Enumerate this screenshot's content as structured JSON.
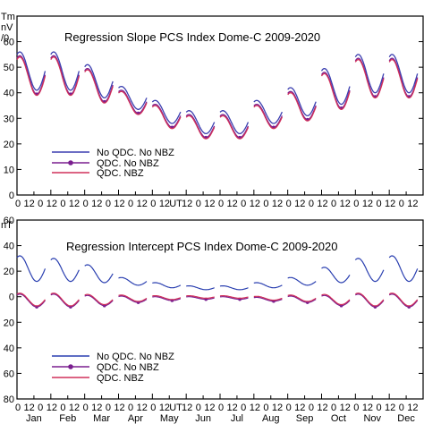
{
  "chart_data": [
    {
      "type": "line",
      "title": "Regression Slope   PCS Index  Dome-C     2009-2020",
      "unit_label_line1": "Tm",
      "unit_label_line2": "nV",
      "unit_label_line3": "/0",
      "ylim": [
        0,
        70
      ],
      "y_ticks": [
        {
          "value": 60,
          "label": "60"
        },
        {
          "value": 50,
          "label": "50"
        },
        {
          "value": 40,
          "label": "40"
        },
        {
          "value": 30,
          "label": "30"
        },
        {
          "value": 20,
          "label": "20"
        },
        {
          "value": 10,
          "label": "10"
        },
        {
          "value": 0,
          "label": "0"
        }
      ],
      "x_hour_ticks": [
        "0",
        "12",
        "0",
        "12",
        "0",
        "12",
        "0",
        "12",
        "0",
        "12",
        "0",
        "12",
        "0",
        "12",
        "UT",
        "12",
        "0",
        "12",
        "0",
        "12",
        "0",
        "12",
        "0",
        "12",
        "0",
        "12",
        "0",
        "12",
        "0",
        "12",
        "0",
        "12",
        "0",
        "12",
        "0",
        "12"
      ],
      "grid": false,
      "legend_position": "bottom-left",
      "legend": [
        {
          "label": "No QDC. No NBZ",
          "color": "#3b3fb0",
          "marker": false
        },
        {
          "label": "QDC. No NBZ",
          "color": "#7a1f8f",
          "marker": true
        },
        {
          "label": "QDC. NBZ",
          "color": "#d0305a",
          "marker": false
        }
      ],
      "months": [
        {
          "month": "Jan",
          "mean": 47,
          "amp": 7.5
        },
        {
          "month": "Feb",
          "mean": 47,
          "amp": 7.5
        },
        {
          "month": "Mar",
          "mean": 43,
          "amp": 6.5
        },
        {
          "month": "Apr",
          "mean": 36.5,
          "amp": 4.5
        },
        {
          "month": "May",
          "mean": 31,
          "amp": 4.5
        },
        {
          "month": "Jun",
          "mean": 27,
          "amp": 4.5
        },
        {
          "month": "Jul",
          "mean": 27,
          "amp": 4.5
        },
        {
          "month": "Aug",
          "mean": 31,
          "amp": 4.5
        },
        {
          "month": "Sep",
          "mean": 35,
          "amp": 5.5
        },
        {
          "month": "Oct",
          "mean": 41,
          "amp": 7
        },
        {
          "month": "Nov",
          "mean": 46,
          "amp": 7.5
        },
        {
          "month": "Dec",
          "mean": 46,
          "amp": 7.5
        }
      ],
      "series": [
        {
          "name": "No QDC. No NBZ",
          "offset": 1.5
        },
        {
          "name": "QDC. No NBZ",
          "offset": 0
        },
        {
          "name": "QDC. NBZ",
          "offset": -0.5
        }
      ]
    },
    {
      "type": "line",
      "title": "Regression Intercept  PCS Index  Dome-C  2009-2020",
      "unit_label_line1": "nT",
      "ylim": [
        -80,
        60
      ],
      "y_ticks": [
        {
          "value": 60,
          "label": "60"
        },
        {
          "value": 40,
          "label": "40"
        },
        {
          "value": 20,
          "label": "20"
        },
        {
          "value": 0,
          "label": "0"
        },
        {
          "value": -20,
          "label": "20"
        },
        {
          "value": -40,
          "label": "40"
        },
        {
          "value": -60,
          "label": "60"
        },
        {
          "value": -80,
          "label": "80"
        }
      ],
      "x_hour_ticks": [
        "0",
        "12",
        "0",
        "12",
        "0",
        "12",
        "0",
        "12",
        "0",
        "12",
        "0",
        "12",
        "0",
        "12",
        "UT",
        "12",
        "0",
        "12",
        "0",
        "12",
        "0",
        "12",
        "0",
        "12",
        "0",
        "12",
        "0",
        "12",
        "0",
        "12",
        "0",
        "12",
        "0",
        "12",
        "0",
        "12"
      ],
      "categories": [
        "Jan",
        "Feb",
        "Mar",
        "Apr",
        "May",
        "Jun",
        "Jul",
        "Aug",
        "Sep",
        "Oct",
        "Nov",
        "Dec"
      ],
      "grid": false,
      "legend_position": "bottom-left",
      "legend": [
        {
          "label": "No QDC. No NBZ",
          "color": "#2a3fb0",
          "marker": false
        },
        {
          "label": "QDC. No NBZ",
          "color": "#7a1f8f",
          "marker": true
        },
        {
          "label": "QDC. NBZ",
          "color": "#d0305a",
          "marker": false
        }
      ],
      "months": [
        {
          "month": "Jan",
          "upper_mean": 22,
          "upper_amp": 10,
          "lower_mean": -3,
          "lower_amp": 5
        },
        {
          "month": "Feb",
          "upper_mean": 21,
          "upper_amp": 9,
          "lower_mean": -3,
          "lower_amp": 5
        },
        {
          "month": "Mar",
          "upper_mean": 18,
          "upper_amp": 7,
          "lower_mean": -3,
          "lower_amp": 4
        },
        {
          "month": "Apr",
          "upper_mean": 12,
          "upper_amp": 3,
          "lower_mean": -2,
          "lower_amp": 2.5
        },
        {
          "month": "May",
          "upper_mean": 9,
          "upper_amp": 2,
          "lower_mean": -1.5,
          "lower_amp": 1.5
        },
        {
          "month": "Jun",
          "upper_mean": 7,
          "upper_amp": 1.5,
          "lower_mean": -1,
          "lower_amp": 1
        },
        {
          "month": "Jul",
          "upper_mean": 7,
          "upper_amp": 1.5,
          "lower_mean": -1,
          "lower_amp": 1
        },
        {
          "month": "Aug",
          "upper_mean": 9,
          "upper_amp": 2,
          "lower_mean": -2,
          "lower_amp": 1.5
        },
        {
          "month": "Sep",
          "upper_mean": 12,
          "upper_amp": 3,
          "lower_mean": -2,
          "lower_amp": 2.5
        },
        {
          "month": "Oct",
          "upper_mean": 17,
          "upper_amp": 6,
          "lower_mean": -3,
          "lower_amp": 4
        },
        {
          "month": "Nov",
          "upper_mean": 21,
          "upper_amp": 9,
          "lower_mean": -3,
          "lower_amp": 5
        },
        {
          "month": "Dec",
          "upper_mean": 22,
          "upper_amp": 10,
          "lower_mean": -3,
          "lower_amp": 5
        }
      ],
      "series": [
        {
          "name": "No QDC. No NBZ",
          "band": "upper"
        },
        {
          "name": "QDC. No NBZ",
          "band": "lower"
        },
        {
          "name": "QDC. NBZ",
          "band": "lower"
        }
      ]
    }
  ]
}
